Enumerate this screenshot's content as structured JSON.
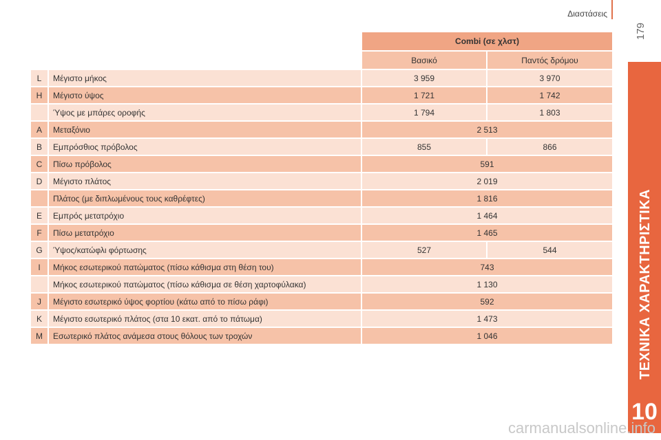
{
  "header": {
    "title": "Διαστάσεις",
    "page_number": "179"
  },
  "side_tab": {
    "label": "ΤΕΧΝΙΚΑ ΧΑΡΑΚΤΗΡΙΣΤΙΚΑ",
    "chapter": "10"
  },
  "watermark": "carmanualsonline.info",
  "table": {
    "group_header": "Combi (σε χλστ)",
    "columns": [
      "Βασικό",
      "Παντός δρόμου"
    ],
    "rows": [
      {
        "letter": "L",
        "label": "Μέγιστο μήκος",
        "v1": "3 959",
        "v2": "3 970"
      },
      {
        "letter": "H",
        "label": "Μέγιστο ύψος",
        "v1": "1 721",
        "v2": "1 742"
      },
      {
        "letter": "",
        "label": "Ύψος με μπάρες οροφής",
        "v1": "1 794",
        "v2": "1 803"
      },
      {
        "letter": "A",
        "label": "Μεταξόνιο",
        "v": "2 513"
      },
      {
        "letter": "B",
        "label": "Εμπρόσθιος πρόβολος",
        "v1": "855",
        "v2": "866"
      },
      {
        "letter": "C",
        "label": "Πίσω πρόβολος",
        "v": "591"
      },
      {
        "letter": "D",
        "label": "Μέγιστο πλάτος",
        "v": "2 019"
      },
      {
        "letter": "",
        "label": "Πλάτος (με διπλωμένους τους καθρέφτες)",
        "v": "1 816"
      },
      {
        "letter": "E",
        "label": "Εμπρός μετατρόχιο",
        "v": "1 464"
      },
      {
        "letter": "F",
        "label": "Πίσω μετατρόχιο",
        "v": "1 465"
      },
      {
        "letter": "G",
        "label": "Ύψος/κατώφλι φόρτωσης",
        "v1": "527",
        "v2": "544"
      },
      {
        "letter": "I",
        "label": "Μήκος εσωτερικού πατώματος (πίσω κάθισμα στη θέση του)",
        "v": "743"
      },
      {
        "letter": "",
        "label": "Μήκος εσωτερικού πατώματος (πίσω κάθισμα σε θέση χαρτοφύλακα)",
        "v": "1 130"
      },
      {
        "letter": "J",
        "label": "Μέγιστο εσωτερικό ύψος φορτίου (κάτω από το πίσω ράφι)",
        "v": "592"
      },
      {
        "letter": "K",
        "label": "Μέγιστο εσωτερικό πλάτος (στα 10 εκατ. από το πάτωμα)",
        "v": "1 473"
      },
      {
        "letter": "M",
        "label": "Εσωτερικό πλάτος ανάμεσα στους θόλους των τροχών",
        "v": "1 046"
      }
    ]
  }
}
